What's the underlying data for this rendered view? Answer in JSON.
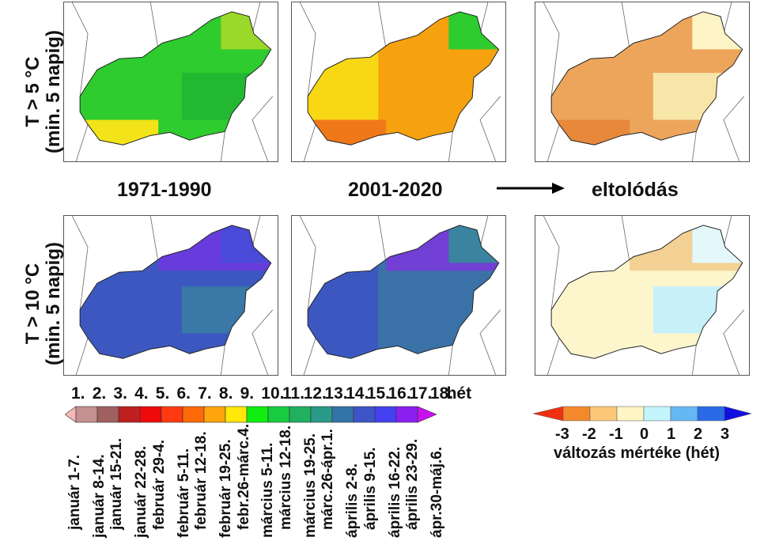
{
  "row_labels": [
    {
      "line1": "T > 5 °C",
      "line2": "(min. 5 napig)"
    },
    {
      "line1": "T > 10 °C",
      "line2": "(min. 5 napig)"
    }
  ],
  "column_labels": [
    "1971-1990",
    "2001-2020",
    "eltolódás"
  ],
  "maps": [
    {
      "base": "#2ecc2e",
      "patch1": "#22b832",
      "patch2": "#f2e418",
      "patch3": "#9ad82a"
    },
    {
      "base": "#f5a20e",
      "patch1": "#f8d814",
      "patch2": "#f07818",
      "patch3": "#2ecc2e"
    },
    {
      "base": "#eda55c",
      "patch1": "#f7e6a8",
      "patch2": "#e8883a",
      "patch3": "#fdf4c6"
    },
    {
      "base": "#3c58c0",
      "patch1": "#3a78a8",
      "patch2": "#7a30e8",
      "patch3": "#4a4ad8"
    },
    {
      "base": "#3a72a8",
      "patch1": "#3c58c0",
      "patch2": "#8a2ae8",
      "patch3": "#3a84a0"
    },
    {
      "base": "#fdf6cc",
      "patch1": "#c8f0f8",
      "patch2": "#eec07a",
      "patch3": "#e4f8fc"
    }
  ],
  "week_legend": {
    "unit": "hét",
    "weeks": [
      "1.",
      "2.",
      "3.",
      "4.",
      "5.",
      "6.",
      "7.",
      "8.",
      "9.",
      "10.",
      "11.",
      "12.",
      "13.",
      "14.",
      "15.",
      "16.",
      "17.",
      "18."
    ],
    "colors": [
      "#f6b8b8",
      "#c49090",
      "#a06060",
      "#c02020",
      "#ee0a0a",
      "#ff3a10",
      "#ff6a08",
      "#ffa40c",
      "#ffe80a",
      "#10ee10",
      "#18cc40",
      "#20b060",
      "#2a9a88",
      "#3274a8",
      "#3c54c8",
      "#4440f0",
      "#8a20f0",
      "#c810ee"
    ],
    "dates": [
      "január 1-7.",
      "január 8-14.",
      "január 15-21.",
      "január 22-28.",
      "február 29-4.",
      "február 5-11.",
      "február 12-18.",
      "február 19-25.",
      "febr.26-márc.4.",
      "március 5-11.",
      "március 12-18.",
      "március 19-25.",
      "márc.26-ápr.1.",
      "április 2-8.",
      "április 9-15.",
      "április 16-22.",
      "április 23-29.",
      "ápr.30-máj.6."
    ]
  },
  "change_legend": {
    "ticks": [
      "-3",
      "-2",
      "-1",
      "0",
      "1",
      "2",
      "3"
    ],
    "colors": [
      "#f03010",
      "#f4882c",
      "#fcc878",
      "#fdf6c4",
      "#c4f4fc",
      "#64b8f4",
      "#2a6ae8",
      "#1010e0"
    ],
    "label": "változás mértéke (hét)"
  }
}
